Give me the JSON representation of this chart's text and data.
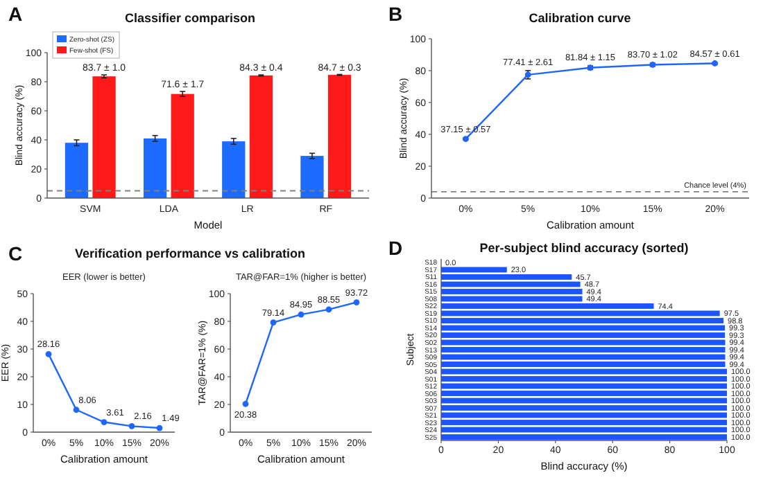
{
  "chart_data": [
    {
      "type": "bar",
      "title": "Classifier comparison",
      "xlabel": "Model",
      "ylabel": "Blind accuracy (%)",
      "annotations": [
        "A"
      ],
      "categories": [
        "SVM",
        "LDA",
        "LR",
        "RF"
      ],
      "ylim": [
        0,
        100
      ],
      "yticks": [
        0,
        20,
        40,
        60,
        80,
        100
      ],
      "legend": "top left",
      "series": [
        {
          "name": "Zero-shot (ZS)",
          "color": "#1e6bff",
          "values": [
            38,
            41,
            39,
            29
          ],
          "errors": [
            2,
            2,
            2,
            1.8
          ]
        },
        {
          "name": "Few-shot (FS)",
          "color": "#ff1a1a",
          "values": [
            83.7,
            71.6,
            84.3,
            84.7
          ],
          "errors": [
            1.0,
            1.7,
            0.4,
            0.3
          ],
          "value_labels": [
            "83.7 ± 1.0",
            "71.6 ± 1.7",
            "84.3 ± 0.4",
            "84.7 ± 0.3"
          ]
        }
      ],
      "ref_lines": [
        {
          "axis": "y",
          "value": 5,
          "label": null,
          "color": "#808080",
          "line_style": "dashed"
        }
      ]
    },
    {
      "type": "line",
      "title": "Calibration curve",
      "xlabel": "Calibration amount",
      "ylabel": "Blind accuracy (%)",
      "annotations": [
        "B"
      ],
      "categories": [
        "0%",
        "5%",
        "10%",
        "15%",
        "20%"
      ],
      "ylim": [
        0,
        100
      ],
      "yticks": [
        0,
        20,
        40,
        60,
        80,
        100
      ],
      "marker": "circle",
      "series": [
        {
          "color": "#1f66ff",
          "values": [
            37.15,
            77.41,
            81.84,
            83.7,
            84.57
          ],
          "errors": [
            0.57,
            2.61,
            1.15,
            1.02,
            0.61
          ],
          "value_labels": [
            "37.15 ± 0.57",
            "77.41 ± 2.61",
            "81.84 ± 1.15",
            "83.70 ± 1.02",
            "84.57 ± 0.61"
          ]
        }
      ],
      "ref_lines": [
        {
          "axis": "y",
          "value": 4,
          "label": "Chance level (4%)",
          "color": "#808080",
          "line_style": "dashed"
        }
      ]
    },
    {
      "type": "line",
      "title": "Verification performance vs calibration",
      "subtitle": "EER (lower is better)",
      "xlabel": "Calibration amount",
      "ylabel": "EER (%)",
      "annotations": [
        "C"
      ],
      "categories": [
        "0%",
        "5%",
        "10%",
        "15%",
        "20%"
      ],
      "ylim": [
        0,
        50
      ],
      "yticks": [
        0,
        10,
        20,
        30,
        40,
        50
      ],
      "marker": "circle",
      "series": [
        {
          "color": "#1f66ff",
          "values": [
            28.16,
            8.06,
            3.61,
            2.16,
            1.49
          ],
          "value_labels": [
            "28.16",
            "8.06",
            "3.61",
            "2.16",
            "1.49"
          ]
        }
      ]
    },
    {
      "type": "line",
      "subtitle": "TAR@FAR=1%  (higher is better)",
      "xlabel": "Calibration amount",
      "ylabel": "TAR@FAR=1% (%)",
      "categories": [
        "0%",
        "5%",
        "10%",
        "15%",
        "20%"
      ],
      "ylim": [
        0,
        100
      ],
      "yticks": [
        0,
        20,
        40,
        60,
        80,
        100
      ],
      "marker": "circle",
      "series": [
        {
          "color": "#1f66ff",
          "values": [
            20.38,
            79.14,
            84.95,
            88.55,
            93.72
          ],
          "value_labels": [
            "20.38",
            "79.14",
            "84.95",
            "88.55",
            "93.72"
          ]
        }
      ]
    },
    {
      "type": "bar",
      "orientation": "horizontal",
      "title": "Per-subject blind accuracy (sorted)",
      "xlabel": "Blind accuracy (%)",
      "ylabel": "Subject",
      "annotations": [
        "D"
      ],
      "xlim": [
        0,
        100
      ],
      "xticks": [
        0,
        20,
        40,
        60,
        80,
        100
      ],
      "categories": [
        "S18",
        "S17",
        "S11",
        "S16",
        "S15",
        "S08",
        "S22",
        "S19",
        "S10",
        "S14",
        "S20",
        "S02",
        "S13",
        "S09",
        "S05",
        "S04",
        "S01",
        "S12",
        "S06",
        "S03",
        "S07",
        "S21",
        "S23",
        "S24",
        "S25"
      ],
      "series": [
        {
          "color": "#1a55ff",
          "values": [
            0.0,
            23.0,
            45.7,
            48.7,
            49.4,
            49.4,
            74.4,
            97.5,
            98.8,
            99.3,
            99.3,
            99.4,
            99.4,
            99.4,
            99.4,
            100.0,
            100.0,
            100.0,
            100.0,
            100.0,
            100.0,
            100.0,
            100.0,
            100.0,
            100.0
          ],
          "value_labels": [
            "0.0",
            "23.0",
            "45.7",
            "48.7",
            "49.4",
            "49.4",
            "74.4",
            "97.5",
            "98.8",
            "99.3",
            "99.3",
            "99.4",
            "99.4",
            "99.4",
            "99.4",
            "100.0",
            "100.0",
            "100.0",
            "100.0",
            "100.0",
            "100.0",
            "100.0",
            "100.0",
            "100.0",
            "100.0"
          ]
        }
      ]
    }
  ]
}
